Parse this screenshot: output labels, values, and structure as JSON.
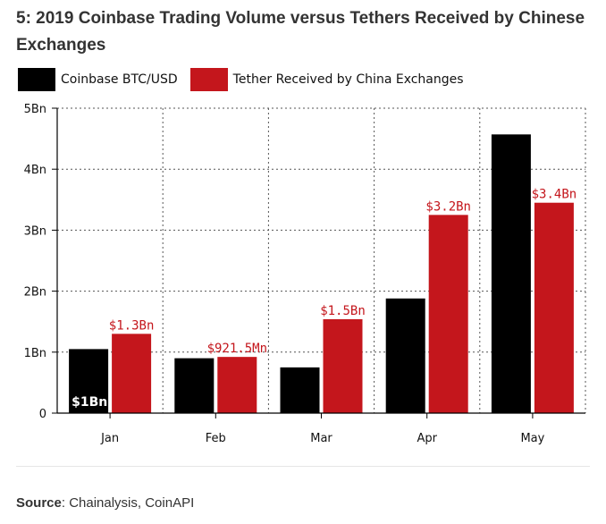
{
  "title": "5: 2019 Coinbase Trading Volume versus Tethers Received by Chinese Exchanges",
  "source": {
    "label": "Source",
    "text": ": Chainalysis, CoinAPI"
  },
  "colors": {
    "coinbase": "#000000",
    "tether": "#c4161c",
    "tether_label": "#c4161c",
    "grid": "#555555"
  },
  "chart_data": {
    "type": "bar",
    "title": "",
    "xlabel": "",
    "ylabel": "",
    "ylim": [
      0,
      5000000000
    ],
    "yticks": [
      {
        "value": 0,
        "label": "0"
      },
      {
        "value": 1000000000,
        "label": "1Bn"
      },
      {
        "value": 2000000000,
        "label": "2Bn"
      },
      {
        "value": 3000000000,
        "label": "3Bn"
      },
      {
        "value": 4000000000,
        "label": "4Bn"
      },
      {
        "value": 5000000000,
        "label": "5Bn"
      }
    ],
    "grid": true,
    "legend_position": "top-left",
    "categories": [
      "Jan",
      "Feb",
      "Mar",
      "Apr",
      "May"
    ],
    "series": [
      {
        "name": "Coinbase BTC/USD",
        "values": [
          1050000000,
          900000000,
          750000000,
          1880000000,
          4570000000
        ],
        "labels": [
          "$1Bn",
          "",
          "",
          "",
          ""
        ]
      },
      {
        "name": "Tether Received by China Exchanges",
        "values": [
          1300000000,
          921500000,
          1540000000,
          3250000000,
          3450000000
        ],
        "labels": [
          "$1.3Bn",
          "$921.5Mn",
          "$1.5Bn",
          "$3.2Bn",
          "$3.4Bn"
        ]
      }
    ]
  }
}
